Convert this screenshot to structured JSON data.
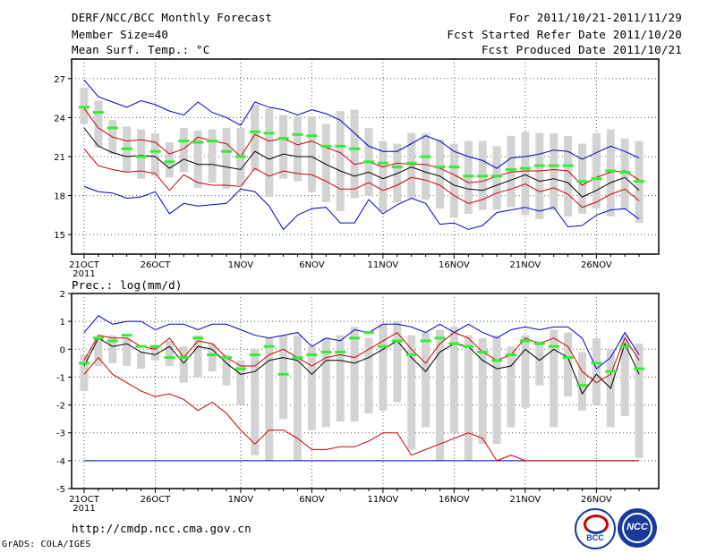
{
  "header": {
    "title": "DERF/NCC/BCC Monthly Forecast",
    "member_size": "Member Size=40",
    "variable": "Mean Surf. Temp.: °C",
    "period": "For 2011/10/21-2011/11/29",
    "started": "Fcst Started Refer Date 2011/10/20",
    "produced": "Fcst Produced Date 2011/10/21"
  },
  "footer": {
    "url": "http://cmdp.ncc.cma.gov.cn",
    "credit": "GrADS: COLA/IGES",
    "logo1": "BCC",
    "logo2": "NCC"
  },
  "colors": {
    "mean": "#000000",
    "spread": "#cc0000",
    "extreme": "#0000cc",
    "box": "#d3d3d3",
    "median": "#33ee33"
  },
  "chart_data": [
    {
      "type": "box-ensemble",
      "title": "Mean Surf. Temp.: °C",
      "ylim": [
        13.5,
        28.5
      ],
      "yticks": [
        15,
        18,
        21,
        24,
        27
      ],
      "x_ticklabels": [
        "21OCT",
        "26OCT",
        "1NOV",
        "6NOV",
        "11NOV",
        "16NOV",
        "21NOV",
        "26NOV"
      ],
      "x_year": "2011",
      "days": 40,
      "series": [
        {
          "name": "ensemble-max",
          "values": [
            26.9,
            25.6,
            25.2,
            24.8,
            25.3,
            25.0,
            24.5,
            24.2,
            25.2,
            24.4,
            24.0,
            23.4,
            25.2,
            24.8,
            24.6,
            24.2,
            24.6,
            24.3,
            23.8,
            22.8,
            21.8,
            21.4,
            21.4,
            22.0,
            22.6,
            22.2,
            21.4,
            21.0,
            20.7,
            20.1,
            20.9,
            21.0,
            21.2,
            21.5,
            21.4,
            20.8,
            21.3,
            21.8,
            21.4,
            20.9
          ]
        },
        {
          "name": "mean-plus-sd",
          "values": [
            24.7,
            23.2,
            22.5,
            22.2,
            22.3,
            22.1,
            21.2,
            21.6,
            22.5,
            22.2,
            22.0,
            21.0,
            22.7,
            22.2,
            22.4,
            21.9,
            22.2,
            21.7,
            21.3,
            20.4,
            20.6,
            20.2,
            20.5,
            20.4,
            20.4,
            20.1,
            19.6,
            19.0,
            19.1,
            19.5,
            19.8,
            19.9,
            19.9,
            20.0,
            19.9,
            18.8,
            19.4,
            19.8,
            19.9,
            19.2
          ]
        },
        {
          "name": "ensemble-mean",
          "values": [
            23.2,
            21.8,
            21.3,
            21.0,
            21.1,
            21.0,
            20.1,
            20.8,
            20.4,
            20.4,
            20.2,
            20.0,
            21.4,
            20.8,
            21.2,
            21.0,
            21.0,
            20.4,
            19.9,
            19.5,
            19.8,
            19.3,
            19.7,
            20.2,
            19.8,
            19.5,
            18.8,
            18.5,
            18.4,
            18.8,
            19.2,
            19.6,
            19.1,
            19.3,
            19.0,
            17.9,
            18.4,
            19.0,
            19.4,
            18.4
          ]
        },
        {
          "name": "mean-minus-sd",
          "values": [
            21.6,
            20.3,
            20.0,
            19.8,
            19.9,
            19.7,
            18.4,
            19.6,
            19.0,
            18.8,
            18.8,
            18.7,
            20.1,
            19.5,
            19.9,
            19.7,
            19.6,
            19.1,
            18.5,
            18.5,
            19.0,
            18.4,
            18.8,
            19.4,
            19.2,
            18.8,
            18.0,
            17.4,
            17.7,
            18.2,
            18.5,
            18.9,
            18.3,
            18.6,
            18.1,
            17.1,
            17.5,
            18.1,
            18.5,
            17.6
          ]
        },
        {
          "name": "ensemble-min",
          "values": [
            18.7,
            18.3,
            18.2,
            17.8,
            17.9,
            18.3,
            16.6,
            17.4,
            17.2,
            17.3,
            17.4,
            18.5,
            18.3,
            17.2,
            15.4,
            16.5,
            17.0,
            17.1,
            15.9,
            15.9,
            17.7,
            16.6,
            17.3,
            17.8,
            17.4,
            15.8,
            15.9,
            15.4,
            15.7,
            16.7,
            16.9,
            17.1,
            16.8,
            17.1,
            15.6,
            15.7,
            16.5,
            16.9,
            17.0,
            16.2
          ]
        },
        {
          "name": "box-top",
          "values": [
            26.3,
            25.3,
            23.8,
            23.3,
            23.1,
            22.8,
            22.1,
            23.2,
            23.0,
            23.1,
            23.2,
            23.2,
            25.0,
            24.7,
            24.2,
            24.1,
            24.1,
            23.5,
            24.5,
            24.6,
            23.2,
            22.2,
            22.0,
            22.8,
            22.8,
            22.3,
            22.0,
            22.2,
            22.2,
            21.8,
            22.6,
            22.9,
            22.8,
            22.8,
            22.6,
            22.0,
            22.8,
            23.1,
            22.4,
            22.2
          ]
        },
        {
          "name": "box-bottom",
          "values": [
            23.5,
            21.7,
            21.2,
            19.8,
            19.3,
            19.5,
            19.4,
            19.8,
            18.6,
            19.0,
            18.5,
            18.8,
            19.9,
            17.9,
            19.3,
            19.1,
            18.3,
            17.5,
            16.8,
            17.8,
            18.0,
            16.8,
            17.5,
            17.8,
            17.7,
            17.0,
            16.3,
            16.6,
            16.9,
            16.9,
            17.1,
            16.5,
            16.2,
            16.9,
            16.4,
            16.6,
            17.0,
            16.4,
            16.9,
            15.9
          ]
        },
        {
          "name": "median",
          "values": [
            24.8,
            24.4,
            23.2,
            21.6,
            21.0,
            21.4,
            20.6,
            22.2,
            22.1,
            22.2,
            21.4,
            21.0,
            22.9,
            22.8,
            22.4,
            22.7,
            22.6,
            21.8,
            21.8,
            21.6,
            20.6,
            20.5,
            20.2,
            20.5,
            21.0,
            20.2,
            20.2,
            19.5,
            19.5,
            19.5,
            20.0,
            20.1,
            20.3,
            20.3,
            20.3,
            19.1,
            19.3,
            19.9,
            19.8,
            19.1
          ]
        }
      ]
    },
    {
      "type": "box-ensemble",
      "title": "Prec.: log(mm/d)",
      "ylim": [
        -5,
        2
      ],
      "yticks": [
        -5,
        -4,
        -3,
        -2,
        -1,
        0,
        1,
        2
      ],
      "x_ticklabels": [
        "21OCT",
        "26OCT",
        "1NOV",
        "6NOV",
        "11NOV",
        "16NOV",
        "21NOV",
        "26NOV"
      ],
      "x_year": "2011",
      "days": 40,
      "series": [
        {
          "name": "ensemble-max",
          "values": [
            0.6,
            1.2,
            0.9,
            1.0,
            1.0,
            0.7,
            0.9,
            0.9,
            0.7,
            0.9,
            0.9,
            0.7,
            0.5,
            0.4,
            0.5,
            0.6,
            0.1,
            0.4,
            0.3,
            0.7,
            0.6,
            0.9,
            0.9,
            0.8,
            0.6,
            0.9,
            0.6,
            0.9,
            0.6,
            0.4,
            0.7,
            0.8,
            0.7,
            0.8,
            0.8,
            0.4,
            -0.7,
            -0.3,
            0.6,
            -0.2
          ]
        },
        {
          "name": "mean-plus-sd",
          "values": [
            -0.4,
            0.5,
            0.4,
            0.4,
            0.1,
            0.0,
            0.4,
            -0.3,
            0.3,
            0.2,
            -0.3,
            -0.6,
            -0.6,
            -0.2,
            0.0,
            -0.3,
            -0.6,
            -0.3,
            -0.2,
            -0.3,
            0.0,
            0.3,
            0.6,
            0.0,
            -0.5,
            0.2,
            0.6,
            0.4,
            -0.1,
            -0.4,
            -0.2,
            0.4,
            0.2,
            0.4,
            0.1,
            -0.8,
            -1.2,
            -0.9,
            0.4,
            -0.4
          ]
        },
        {
          "name": "ensemble-mean",
          "values": [
            -0.6,
            0.4,
            0.1,
            0.2,
            -0.1,
            -0.2,
            0.1,
            -0.5,
            0.1,
            0.0,
            -0.5,
            -0.9,
            -0.8,
            -0.4,
            -0.3,
            -0.4,
            -0.9,
            -0.4,
            -0.4,
            -0.5,
            -0.3,
            0.0,
            0.3,
            -0.3,
            -0.8,
            -0.1,
            0.2,
            0.1,
            -0.4,
            -0.7,
            -0.6,
            0.0,
            -0.4,
            0.0,
            -0.3,
            -1.6,
            -0.9,
            -1.4,
            0.2,
            -0.9
          ]
        },
        {
          "name": "mean-minus-sd",
          "values": [
            -0.9,
            -0.3,
            -0.9,
            -1.2,
            -1.5,
            -1.7,
            -1.6,
            -1.8,
            -2.2,
            -1.9,
            -2.3,
            -2.9,
            -3.4,
            -2.9,
            -2.9,
            -3.2,
            -3.6,
            -3.6,
            -3.5,
            -3.5,
            -3.3,
            -3.0,
            -3.0,
            -3.8,
            -3.6,
            -3.4,
            -3.2,
            -3.0,
            -3.2,
            -4.0,
            -3.8,
            -4.0,
            -4.0,
            -4.0,
            -4.0,
            -4.0,
            -4.0,
            -4.0,
            -4.0,
            -4.0
          ]
        },
        {
          "name": "ensemble-min",
          "values": [
            -4.0,
            -4.0,
            -4.0,
            -4.0,
            -4.0,
            -4.0,
            -4.0,
            -4.0,
            -4.0,
            -4.0,
            -4.0,
            -4.0,
            -4.0,
            -4.0,
            -4.0,
            -4.0,
            -4.0,
            -4.0,
            -4.0,
            -4.0,
            -4.0,
            -4.0,
            -4.0,
            -4.0,
            -4.0,
            -4.0,
            -4.0,
            -4.0,
            -4.0,
            -4.0,
            -4.0,
            -4.0,
            -4.0,
            -4.0,
            -4.0,
            -4.0,
            -4.0,
            -4.0,
            -4.0,
            -4.0
          ]
        },
        {
          "name": "box-top",
          "values": [
            -0.2,
            0.4,
            0.5,
            0.4,
            -0.1,
            0.1,
            0.3,
            0.1,
            0.5,
            0.2,
            -0.2,
            -0.4,
            0.0,
            0.4,
            0.5,
            0.5,
            0.1,
            0.4,
            0.5,
            0.8,
            0.4,
            0.9,
            1.0,
            0.5,
            0.6,
            0.7,
            0.8,
            0.5,
            0.4,
            0.5,
            0.1,
            0.5,
            0.3,
            0.7,
            0.6,
            -0.1,
            0.4,
            0.0,
            0.5,
            0.2
          ]
        },
        {
          "name": "box-bottom",
          "values": [
            -1.5,
            -0.6,
            -0.5,
            -0.6,
            -0.7,
            -0.4,
            -0.6,
            -1.2,
            -1.0,
            -0.8,
            -1.3,
            -2.0,
            -3.8,
            -4.0,
            -2.5,
            -4.0,
            -2.9,
            -2.8,
            -2.6,
            -2.6,
            -2.3,
            -2.2,
            -1.9,
            -3.6,
            -2.8,
            -4.0,
            -3.0,
            -4.0,
            -3.4,
            -3.4,
            -2.8,
            -2.1,
            -1.3,
            -2.8,
            -1.7,
            -2.2,
            -2.0,
            -2.8,
            -2.4,
            -3.9
          ]
        },
        {
          "name": "median",
          "values": [
            -0.5,
            0.4,
            0.3,
            0.5,
            0.1,
            0.1,
            -0.3,
            -0.3,
            0.4,
            -0.2,
            -0.3,
            -0.7,
            -0.2,
            0.1,
            -0.9,
            -0.3,
            -0.2,
            -0.1,
            -0.1,
            0.4,
            0.6,
            0.1,
            0.3,
            -0.2,
            0.3,
            0.4,
            0.2,
            0.1,
            -0.1,
            -0.4,
            -0.2,
            0.3,
            0.2,
            0.1,
            -0.3,
            -1.3,
            -0.5,
            -0.8,
            0.1,
            -0.7
          ]
        }
      ]
    }
  ]
}
